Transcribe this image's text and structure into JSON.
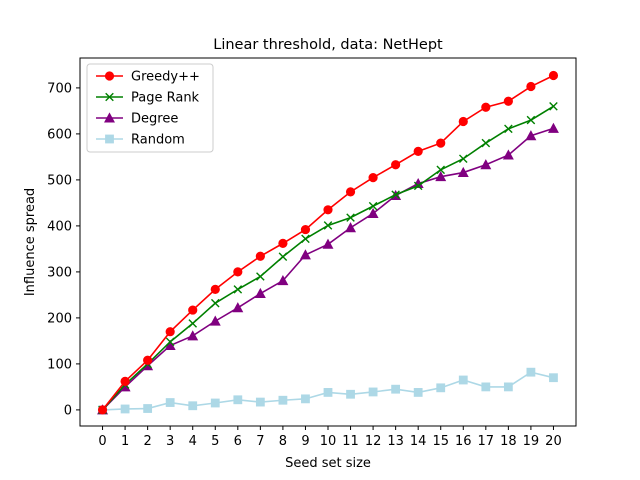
{
  "chart_data": {
    "type": "line",
    "title": "Linear threshold, data: NetHept",
    "xlabel": "Seed set size",
    "ylabel": "Influence spread",
    "x": [
      0,
      1,
      2,
      3,
      4,
      5,
      6,
      7,
      8,
      9,
      10,
      11,
      12,
      13,
      14,
      15,
      16,
      17,
      18,
      19,
      20
    ],
    "xlim": [
      -1,
      21
    ],
    "ylim": [
      -35,
      765
    ],
    "yticks": [
      0,
      100,
      200,
      300,
      400,
      500,
      600,
      700
    ],
    "grid": false,
    "legend_position": "upper-left",
    "series": [
      {
        "name": "Greedy++",
        "color": "#ff0000",
        "marker": "circle",
        "values": [
          0,
          62,
          108,
          170,
          217,
          262,
          300,
          334,
          362,
          392,
          435,
          474,
          505,
          533,
          562,
          580,
          627,
          658,
          671,
          703,
          727
        ]
      },
      {
        "name": "Page Rank",
        "color": "#008000",
        "marker": "x",
        "values": [
          0,
          55,
          100,
          148,
          188,
          232,
          262,
          290,
          333,
          372,
          401,
          418,
          443,
          468,
          487,
          522,
          546,
          580,
          611,
          630,
          660
        ]
      },
      {
        "name": "Degree",
        "color": "#800080",
        "marker": "triangle",
        "values": [
          0,
          50,
          96,
          140,
          161,
          193,
          222,
          253,
          281,
          337,
          360,
          396,
          427,
          466,
          492,
          507,
          516,
          533,
          554,
          596,
          612
        ]
      },
      {
        "name": "Random",
        "color": "#add8e6",
        "marker": "square",
        "values": [
          0,
          2,
          3,
          16,
          9,
          15,
          22,
          17,
          21,
          24,
          38,
          34,
          39,
          45,
          38,
          48,
          65,
          50,
          50,
          82,
          70
        ]
      }
    ]
  }
}
